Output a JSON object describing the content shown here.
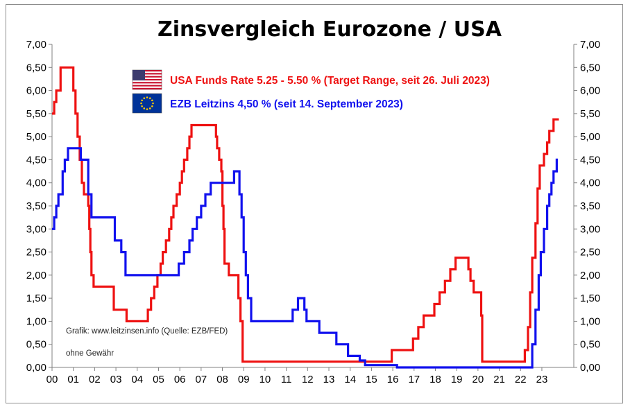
{
  "chart_data": {
    "type": "line",
    "title": "Zinsvergleich Eurozone / USA",
    "x_tick_labels": [
      "00",
      "01",
      "02",
      "03",
      "04",
      "05",
      "06",
      "07",
      "08",
      "09",
      "10",
      "11",
      "12",
      "13",
      "14",
      "15",
      "16",
      "17",
      "18",
      "19",
      "20",
      "21",
      "22",
      "23"
    ],
    "y_tick_labels": [
      "0,00",
      "0,50",
      "1,00",
      "1,50",
      "2,00",
      "2,50",
      "3,00",
      "3,50",
      "4,00",
      "4,50",
      "5,00",
      "5,50",
      "6,00",
      "6,50",
      "7,00"
    ],
    "xlim": [
      2000,
      2024.5
    ],
    "ylim": [
      0,
      7
    ],
    "grid": false,
    "step": true,
    "secondary_y_axis": true,
    "series": [
      {
        "name": "USA Funds Rate 5.25 - 5.50 % (Target Range, seit 26. Juli 2023)",
        "color": "#ee1111",
        "flag_icon": "us-flag-icon",
        "points": [
          [
            2000.0,
            5.5
          ],
          [
            2000.1,
            5.75
          ],
          [
            2000.2,
            6.0
          ],
          [
            2000.4,
            6.5
          ],
          [
            2001.0,
            6.0
          ],
          [
            2001.1,
            5.5
          ],
          [
            2001.2,
            5.0
          ],
          [
            2001.3,
            4.5
          ],
          [
            2001.4,
            4.0
          ],
          [
            2001.5,
            3.75
          ],
          [
            2001.7,
            3.5
          ],
          [
            2001.75,
            3.0
          ],
          [
            2001.8,
            2.5
          ],
          [
            2001.85,
            2.0
          ],
          [
            2001.95,
            1.75
          ],
          [
            2002.9,
            1.25
          ],
          [
            2003.5,
            1.0
          ],
          [
            2004.5,
            1.25
          ],
          [
            2004.65,
            1.5
          ],
          [
            2004.8,
            1.75
          ],
          [
            2004.95,
            2.0
          ],
          [
            2005.1,
            2.25
          ],
          [
            2005.2,
            2.5
          ],
          [
            2005.35,
            2.75
          ],
          [
            2005.5,
            3.0
          ],
          [
            2005.6,
            3.25
          ],
          [
            2005.7,
            3.5
          ],
          [
            2005.85,
            3.75
          ],
          [
            2006.0,
            4.0
          ],
          [
            2006.1,
            4.25
          ],
          [
            2006.2,
            4.5
          ],
          [
            2006.35,
            4.75
          ],
          [
            2006.45,
            5.0
          ],
          [
            2006.55,
            5.25
          ],
          [
            2007.7,
            5.0
          ],
          [
            2007.75,
            4.75
          ],
          [
            2007.85,
            4.5
          ],
          [
            2007.95,
            4.25
          ],
          [
            2008.0,
            3.5
          ],
          [
            2008.05,
            3.0
          ],
          [
            2008.1,
            2.25
          ],
          [
            2008.3,
            2.0
          ],
          [
            2008.75,
            1.5
          ],
          [
            2008.85,
            1.0
          ],
          [
            2008.95,
            0.125
          ],
          [
            2015.95,
            0.375
          ],
          [
            2016.95,
            0.625
          ],
          [
            2017.2,
            0.875
          ],
          [
            2017.45,
            1.125
          ],
          [
            2017.95,
            1.375
          ],
          [
            2018.2,
            1.625
          ],
          [
            2018.45,
            1.875
          ],
          [
            2018.7,
            2.125
          ],
          [
            2018.95,
            2.375
          ],
          [
            2019.55,
            2.125
          ],
          [
            2019.65,
            1.875
          ],
          [
            2019.8,
            1.625
          ],
          [
            2020.15,
            1.125
          ],
          [
            2020.2,
            0.125
          ],
          [
            2022.2,
            0.375
          ],
          [
            2022.35,
            0.875
          ],
          [
            2022.45,
            1.625
          ],
          [
            2022.55,
            2.375
          ],
          [
            2022.7,
            3.125
          ],
          [
            2022.8,
            3.875
          ],
          [
            2022.9,
            4.375
          ],
          [
            2023.1,
            4.625
          ],
          [
            2023.25,
            4.875
          ],
          [
            2023.35,
            5.125
          ],
          [
            2023.55,
            5.375
          ],
          [
            2023.8,
            5.375
          ]
        ]
      },
      {
        "name": "EZB Leitzins 4,50 %  (seit 14. September 2023)",
        "color": "#1111ee",
        "flag_icon": "eu-flag-icon",
        "points": [
          [
            2000.0,
            3.0
          ],
          [
            2000.1,
            3.25
          ],
          [
            2000.2,
            3.5
          ],
          [
            2000.3,
            3.75
          ],
          [
            2000.5,
            4.25
          ],
          [
            2000.6,
            4.5
          ],
          [
            2000.75,
            4.75
          ],
          [
            2001.35,
            4.5
          ],
          [
            2001.7,
            3.75
          ],
          [
            2001.85,
            3.25
          ],
          [
            2002.95,
            2.75
          ],
          [
            2003.25,
            2.5
          ],
          [
            2003.45,
            2.0
          ],
          [
            2005.95,
            2.25
          ],
          [
            2006.2,
            2.5
          ],
          [
            2006.45,
            2.75
          ],
          [
            2006.6,
            3.0
          ],
          [
            2006.8,
            3.25
          ],
          [
            2007.0,
            3.5
          ],
          [
            2007.2,
            3.75
          ],
          [
            2007.45,
            4.0
          ],
          [
            2008.55,
            4.25
          ],
          [
            2008.8,
            3.75
          ],
          [
            2008.9,
            3.25
          ],
          [
            2009.0,
            2.5
          ],
          [
            2009.1,
            2.0
          ],
          [
            2009.2,
            1.5
          ],
          [
            2009.35,
            1.0
          ],
          [
            2011.3,
            1.25
          ],
          [
            2011.55,
            1.5
          ],
          [
            2011.85,
            1.25
          ],
          [
            2011.95,
            1.0
          ],
          [
            2012.55,
            0.75
          ],
          [
            2013.35,
            0.5
          ],
          [
            2013.9,
            0.25
          ],
          [
            2014.45,
            0.15
          ],
          [
            2014.7,
            0.05
          ],
          [
            2016.2,
            0.0
          ],
          [
            2022.55,
            0.5
          ],
          [
            2022.7,
            1.25
          ],
          [
            2022.85,
            2.0
          ],
          [
            2022.95,
            2.5
          ],
          [
            2023.1,
            3.0
          ],
          [
            2023.25,
            3.5
          ],
          [
            2023.35,
            3.75
          ],
          [
            2023.45,
            4.0
          ],
          [
            2023.55,
            4.25
          ],
          [
            2023.7,
            4.5
          ],
          [
            2023.75,
            4.5
          ]
        ]
      }
    ],
    "annotations": [
      "Grafik: www.leitzinsen.info (Quelle: EZB/FED)",
      "ohne Gewähr"
    ]
  }
}
